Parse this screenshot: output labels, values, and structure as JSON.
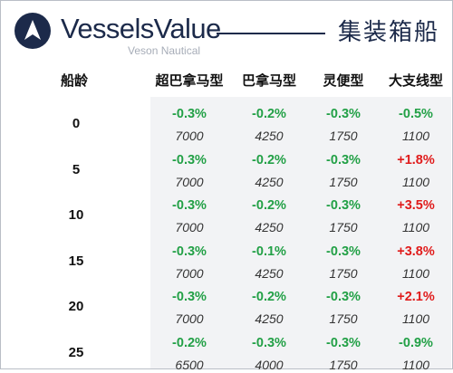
{
  "header": {
    "brand": "VesselsValue",
    "sub_brand": "Veson Nautical",
    "title": "集装箱船"
  },
  "table": {
    "age_header": "船龄",
    "columns": [
      "超巴拿马型",
      "巴拿马型",
      "灵便型",
      "大支线型"
    ],
    "rows": [
      {
        "age": "0",
        "changes": [
          "-0.3%",
          "-0.2%",
          "-0.3%",
          "-0.5%"
        ],
        "prices": [
          "7000",
          "4250",
          "1750",
          "1100"
        ]
      },
      {
        "age": "5",
        "changes": [
          "-0.3%",
          "-0.2%",
          "-0.3%",
          "+1.8%"
        ],
        "prices": [
          "7000",
          "4250",
          "1750",
          "1100"
        ]
      },
      {
        "age": "10",
        "changes": [
          "-0.3%",
          "-0.2%",
          "-0.3%",
          "+3.5%"
        ],
        "prices": [
          "7000",
          "4250",
          "1750",
          "1100"
        ]
      },
      {
        "age": "15",
        "changes": [
          "-0.3%",
          "-0.1%",
          "-0.3%",
          "+3.8%"
        ],
        "prices": [
          "7000",
          "4250",
          "1750",
          "1100"
        ]
      },
      {
        "age": "20",
        "changes": [
          "-0.3%",
          "-0.2%",
          "-0.3%",
          "+2.1%"
        ],
        "prices": [
          "7000",
          "4250",
          "1750",
          "1100"
        ]
      },
      {
        "age": "25",
        "changes": [
          "-0.2%",
          "-0.3%",
          "-0.3%",
          "-0.9%"
        ],
        "prices": [
          "6500",
          "4000",
          "1750",
          "1100"
        ]
      }
    ]
  },
  "colors": {
    "brand_navy": "#1c2a4a",
    "negative_change": "#22a046",
    "positive_change": "#e01b1b",
    "row_shade": "#f2f3f5"
  }
}
